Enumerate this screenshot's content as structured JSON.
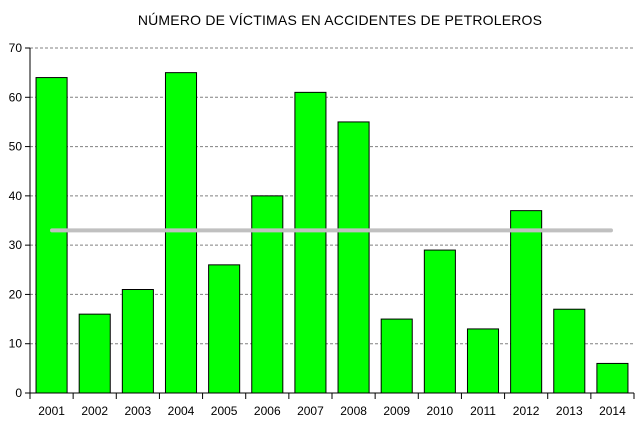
{
  "chart_data": {
    "type": "bar",
    "title": "NÚMERO DE VÍCTIMAS EN ACCIDENTES DE PETROLEROS",
    "categories": [
      "2001",
      "2002",
      "2003",
      "2004",
      "2005",
      "2006",
      "2007",
      "2008",
      "2009",
      "2010",
      "2011",
      "2012",
      "2013",
      "2014"
    ],
    "values": [
      64,
      16,
      21,
      65,
      26,
      40,
      61,
      55,
      15,
      29,
      13,
      37,
      17,
      6
    ],
    "average_line": 33,
    "ylim": [
      0,
      70
    ],
    "yticks": [
      0,
      10,
      20,
      30,
      40,
      50,
      60,
      70
    ],
    "xlabel": "",
    "ylabel": "",
    "grid": true,
    "legend": "none",
    "colors": {
      "bar_fill": "#00ff00",
      "bar_stroke": "#000000",
      "average_line": "#c0c0c0",
      "grid": "#808080",
      "axis": "#000000"
    }
  }
}
